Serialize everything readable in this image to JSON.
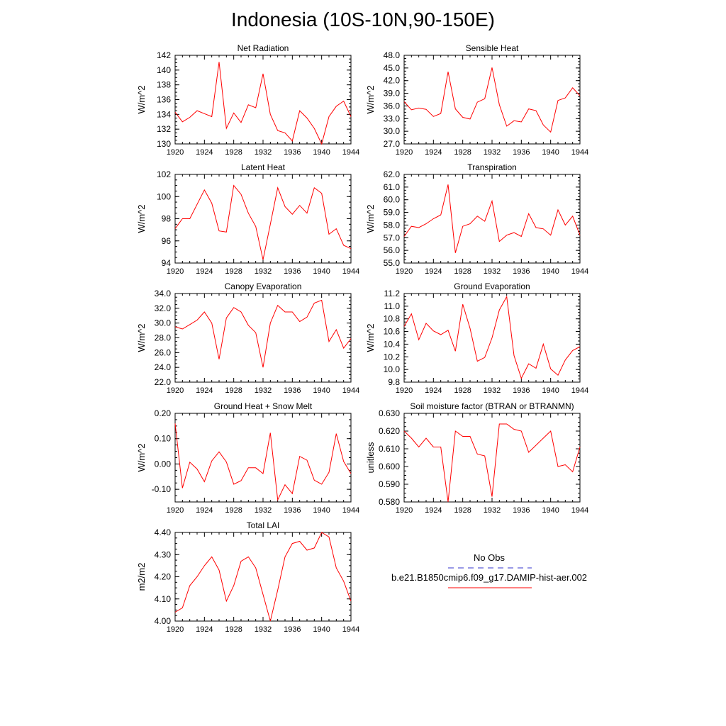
{
  "title": "Indonesia (10S-10N,90-150E)",
  "legend": {
    "obs_label": "No Obs",
    "model_label": "b.e21.B1850cmip6.f09_g17.DAMIP-hist-aer.002",
    "obs_color": "#3333cc",
    "model_color": "#ff0000"
  },
  "chart_data": [
    {
      "type": "line",
      "title": "Net Radiation",
      "ylabel": "W/m^2",
      "xlim": [
        1920,
        1944
      ],
      "xticks": [
        "1920",
        "1924",
        "1928",
        "1932",
        "1936",
        "1940",
        "1944"
      ],
      "ylim": [
        130,
        142
      ],
      "yticks": [
        "130",
        "132",
        "134",
        "136",
        "138",
        "140",
        "142"
      ],
      "x": [
        1920,
        1921,
        1922,
        1923,
        1924,
        1925,
        1926,
        1927,
        1928,
        1929,
        1930,
        1931,
        1932,
        1933,
        1934,
        1935,
        1936,
        1937,
        1938,
        1939,
        1940,
        1941,
        1942,
        1943,
        1944
      ],
      "series": [
        {
          "values": [
            134.3,
            133.0,
            133.6,
            134.5,
            134.1,
            133.7,
            141.1,
            132.1,
            134.2,
            132.9,
            135.3,
            134.9,
            139.5,
            134.0,
            131.8,
            131.5,
            130.4,
            134.5,
            133.5,
            132.1,
            130.0,
            133.7,
            135.1,
            135.8,
            133.7
          ]
        }
      ]
    },
    {
      "type": "line",
      "title": "Sensible Heat",
      "ylabel": "W/m^2",
      "xlim": [
        1920,
        1944
      ],
      "xticks": [
        "1920",
        "1924",
        "1928",
        "1932",
        "1936",
        "1940",
        "1944"
      ],
      "ylim": [
        27,
        48
      ],
      "yticks": [
        "27.0",
        "30.0",
        "33.0",
        "36.0",
        "39.0",
        "42.0",
        "45.0",
        "48.0"
      ],
      "x": [
        1920,
        1921,
        1922,
        1923,
        1924,
        1925,
        1926,
        1927,
        1928,
        1929,
        1930,
        1931,
        1932,
        1933,
        1934,
        1935,
        1936,
        1937,
        1938,
        1939,
        1940,
        1941,
        1942,
        1943,
        1944
      ],
      "series": [
        {
          "values": [
            37.0,
            35.1,
            35.5,
            35.2,
            33.5,
            34.2,
            44.1,
            35.3,
            33.3,
            32.9,
            36.9,
            37.7,
            45.1,
            36.3,
            31.2,
            32.5,
            32.2,
            35.3,
            34.9,
            31.5,
            29.8,
            37.3,
            37.9,
            40.3,
            38.4
          ]
        }
      ]
    },
    {
      "type": "line",
      "title": "Latent Heat",
      "ylabel": "W/m^2",
      "xlim": [
        1920,
        1944
      ],
      "xticks": [
        "1920",
        "1924",
        "1928",
        "1932",
        "1936",
        "1940",
        "1944"
      ],
      "ylim": [
        94,
        102
      ],
      "yticks": [
        "94",
        "96",
        "98",
        "100",
        "102"
      ],
      "x": [
        1920,
        1921,
        1922,
        1923,
        1924,
        1925,
        1926,
        1927,
        1928,
        1929,
        1930,
        1931,
        1932,
        1933,
        1934,
        1935,
        1936,
        1937,
        1938,
        1939,
        1940,
        1941,
        1942,
        1943,
        1944
      ],
      "series": [
        {
          "values": [
            97.1,
            98.0,
            98.0,
            99.3,
            100.6,
            99.4,
            96.9,
            96.8,
            101.0,
            100.2,
            98.5,
            97.3,
            94.3,
            97.5,
            100.8,
            99.1,
            98.4,
            99.2,
            98.5,
            100.8,
            100.3,
            96.6,
            97.1,
            95.6,
            95.3
          ]
        }
      ]
    },
    {
      "type": "line",
      "title": "Transpiration",
      "ylabel": "W/m^2",
      "xlim": [
        1920,
        1944
      ],
      "xticks": [
        "1920",
        "1924",
        "1928",
        "1932",
        "1936",
        "1940",
        "1944"
      ],
      "ylim": [
        55,
        62
      ],
      "yticks": [
        "55.0",
        "56.0",
        "57.0",
        "58.0",
        "59.0",
        "60.0",
        "61.0",
        "62.0"
      ],
      "x": [
        1920,
        1921,
        1922,
        1923,
        1924,
        1925,
        1926,
        1927,
        1928,
        1929,
        1930,
        1931,
        1932,
        1933,
        1934,
        1935,
        1936,
        1937,
        1938,
        1939,
        1940,
        1941,
        1942,
        1943,
        1944
      ],
      "series": [
        {
          "values": [
            57.1,
            57.9,
            57.8,
            58.1,
            58.5,
            58.8,
            61.2,
            55.8,
            57.9,
            58.1,
            58.7,
            58.3,
            59.9,
            56.7,
            57.2,
            57.4,
            57.1,
            58.9,
            57.8,
            57.7,
            57.2,
            59.2,
            58.0,
            58.7,
            57.2
          ]
        }
      ]
    },
    {
      "type": "line",
      "title": "Canopy Evaporation",
      "ylabel": "W/m^2",
      "xlim": [
        1920,
        1944
      ],
      "xticks": [
        "1920",
        "1924",
        "1928",
        "1932",
        "1936",
        "1940",
        "1944"
      ],
      "ylim": [
        22,
        34
      ],
      "yticks": [
        "22.0",
        "24.0",
        "26.0",
        "28.0",
        "30.0",
        "32.0",
        "34.0"
      ],
      "x": [
        1920,
        1921,
        1922,
        1923,
        1924,
        1925,
        1926,
        1927,
        1928,
        1929,
        1930,
        1931,
        1932,
        1933,
        1934,
        1935,
        1936,
        1937,
        1938,
        1939,
        1940,
        1941,
        1942,
        1943,
        1944
      ],
      "series": [
        {
          "values": [
            29.5,
            29.2,
            29.8,
            30.4,
            31.5,
            30.0,
            25.1,
            30.7,
            32.1,
            31.5,
            29.7,
            28.7,
            24.0,
            30.0,
            32.4,
            31.5,
            31.5,
            30.2,
            30.8,
            32.7,
            33.1,
            27.5,
            29.1,
            26.6,
            27.9
          ]
        }
      ]
    },
    {
      "type": "line",
      "title": "Ground Evaporation",
      "ylabel": "W/m^2",
      "xlim": [
        1920,
        1944
      ],
      "xticks": [
        "1920",
        "1924",
        "1928",
        "1932",
        "1936",
        "1940",
        "1944"
      ],
      "ylim": [
        9.8,
        11.2
      ],
      "yticks": [
        "9.8",
        "10.0",
        "10.2",
        "10.4",
        "10.6",
        "10.8",
        "11.0",
        "11.2"
      ],
      "x": [
        1920,
        1921,
        1922,
        1923,
        1924,
        1925,
        1926,
        1927,
        1928,
        1929,
        1930,
        1931,
        1932,
        1933,
        1934,
        1935,
        1936,
        1937,
        1938,
        1939,
        1940,
        1941,
        1942,
        1943,
        1944
      ],
      "series": [
        {
          "values": [
            10.68,
            10.88,
            10.47,
            10.73,
            10.61,
            10.55,
            10.62,
            10.29,
            11.03,
            10.65,
            10.13,
            10.19,
            10.5,
            10.94,
            11.15,
            10.22,
            9.86,
            10.09,
            10.02,
            10.4,
            10.01,
            9.91,
            10.15,
            10.3,
            10.36
          ]
        }
      ]
    },
    {
      "type": "line",
      "title": "Ground Heat + Snow Melt",
      "ylabel": "W/m^2",
      "xlim": [
        1920,
        1944
      ],
      "xticks": [
        "1920",
        "1924",
        "1928",
        "1932",
        "1936",
        "1940",
        "1944"
      ],
      "ylim": [
        -0.15,
        0.2
      ],
      "yticks": [
        "-0.10",
        "0.00",
        "0.10",
        "0.20"
      ],
      "x": [
        1920,
        1921,
        1922,
        1923,
        1924,
        1925,
        1926,
        1927,
        1928,
        1929,
        1930,
        1931,
        1932,
        1933,
        1934,
        1935,
        1936,
        1937,
        1938,
        1939,
        1940,
        1941,
        1942,
        1943,
        1944
      ],
      "series": [
        {
          "values": [
            0.16,
            -0.095,
            0.007,
            -0.02,
            -0.07,
            0.012,
            0.048,
            0.008,
            -0.08,
            -0.066,
            -0.015,
            -0.015,
            -0.038,
            0.123,
            -0.142,
            -0.082,
            -0.117,
            0.03,
            0.015,
            -0.064,
            -0.08,
            -0.033,
            0.12,
            0.01,
            -0.038
          ]
        }
      ]
    },
    {
      "type": "line",
      "title": "Soil moisture factor (BTRAN or BTRANMN)",
      "ylabel": "unitless",
      "xlim": [
        1920,
        1944
      ],
      "xticks": [
        "1920",
        "1924",
        "1928",
        "1932",
        "1936",
        "1940",
        "1944"
      ],
      "ylim": [
        0.58,
        0.63
      ],
      "yticks": [
        "0.580",
        "0.590",
        "0.600",
        "0.610",
        "0.620",
        "0.630"
      ],
      "x": [
        1920,
        1921,
        1922,
        1923,
        1924,
        1925,
        1926,
        1927,
        1928,
        1929,
        1930,
        1931,
        1932,
        1933,
        1934,
        1935,
        1936,
        1937,
        1938,
        1939,
        1940,
        1941,
        1942,
        1943,
        1944
      ],
      "series": [
        {
          "values": [
            0.62,
            0.616,
            0.611,
            0.616,
            0.611,
            0.611,
            0.58,
            0.62,
            0.617,
            0.617,
            0.607,
            0.606,
            0.583,
            0.624,
            0.624,
            0.621,
            0.62,
            0.608,
            0.612,
            0.616,
            0.62,
            0.6,
            0.601,
            0.597,
            0.611
          ]
        }
      ]
    },
    {
      "type": "line",
      "title": "Total LAI",
      "ylabel": "m2/m2",
      "xlim": [
        1920,
        1944
      ],
      "xticks": [
        "1920",
        "1924",
        "1928",
        "1932",
        "1936",
        "1940",
        "1944"
      ],
      "ylim": [
        4.0,
        4.4
      ],
      "yticks": [
        "4.00",
        "4.10",
        "4.20",
        "4.30",
        "4.40"
      ],
      "x": [
        1920,
        1921,
        1922,
        1923,
        1924,
        1925,
        1926,
        1927,
        1928,
        1929,
        1930,
        1931,
        1932,
        1933,
        1934,
        1935,
        1936,
        1937,
        1938,
        1939,
        1940,
        1941,
        1942,
        1943,
        1944
      ],
      "series": [
        {
          "values": [
            4.04,
            4.06,
            4.16,
            4.2,
            4.25,
            4.29,
            4.23,
            4.09,
            4.16,
            4.27,
            4.29,
            4.24,
            4.12,
            4.0,
            4.14,
            4.29,
            4.35,
            4.36,
            4.32,
            4.33,
            4.4,
            4.38,
            4.24,
            4.18,
            4.09
          ]
        }
      ]
    }
  ]
}
